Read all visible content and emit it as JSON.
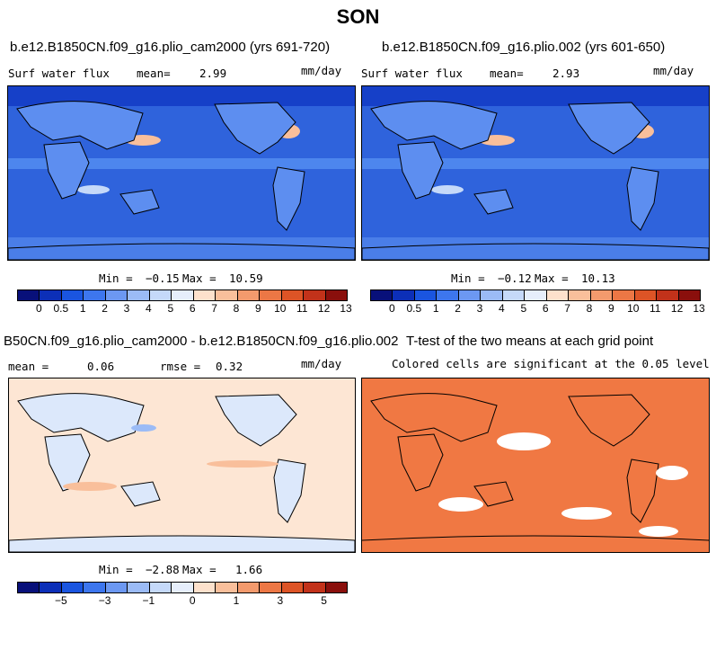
{
  "page": {
    "season": "SON"
  },
  "panel1": {
    "title": "b.e12.B1850CN.f09_g16.plio_cam2000 (yrs 691-720)",
    "var_label": "Surf water flux",
    "mean_label": "mean=",
    "mean_value": "2.99",
    "units": "mm/day",
    "min_label": "Min =",
    "min_value": "−0.15",
    "max_label": "Max =",
    "max_value": "10.59"
  },
  "panel2": {
    "title": "b.e12.B1850CN.f09_g16.plio.002 (yrs 601-650)",
    "var_label": "Surf water flux",
    "mean_label": "mean=",
    "mean_value": "2.93",
    "units": "mm/day",
    "min_label": "Min =",
    "min_value": "−0.12",
    "max_label": "Max =",
    "max_value": "10.13"
  },
  "panel3": {
    "title": "B50CN.f09_g16.plio_cam2000 - b.e12.B1850CN.f09_g16.plio.002",
    "mean_label": "mean =",
    "mean_value": "0.06",
    "rmse_label": "rmse =",
    "rmse_value": "0.32",
    "units": "mm/day",
    "min_label": "Min =",
    "min_value": "−2.88",
    "max_label": "Max =",
    "max_value": "1.66"
  },
  "panel4": {
    "title": "T-test of the two means at each grid point",
    "subtitle": "Colored cells are significant at the 0.05 level"
  },
  "colorbar_full": {
    "colors": [
      "#08107a",
      "#0c2fb8",
      "#1a55e0",
      "#3d76ee",
      "#6c98f2",
      "#9bbbf6",
      "#c5d9f9",
      "#e6eefb",
      "#fde1cc",
      "#f9bf9b",
      "#f39a6d",
      "#ec7745",
      "#dd5426",
      "#c2321a",
      "#8a0f0c"
    ],
    "labels": [
      "0",
      "0.5",
      "1",
      "2",
      "3",
      "4",
      "5",
      "6",
      "7",
      "8",
      "9",
      "10",
      "11",
      "12",
      "13"
    ]
  },
  "colorbar_diff": {
    "colors": [
      "#08107a",
      "#0c2fb8",
      "#1a55e0",
      "#3d76ee",
      "#6c98f2",
      "#9bbbf6",
      "#c5d9f9",
      "#e6eefb",
      "#fde1cc",
      "#f9bf9b",
      "#f39a6d",
      "#ec7745",
      "#dd5426",
      "#c2321a",
      "#8a0f0c"
    ],
    "labels": [
      "−5",
      "−3",
      "−1",
      "0",
      "1",
      "3",
      "5"
    ]
  },
  "map_colors": {
    "ocean_full": "#2f63dc",
    "land_full": "#5d8ef0",
    "diff_base": "#fde6d4",
    "ttest": "#f07843"
  }
}
